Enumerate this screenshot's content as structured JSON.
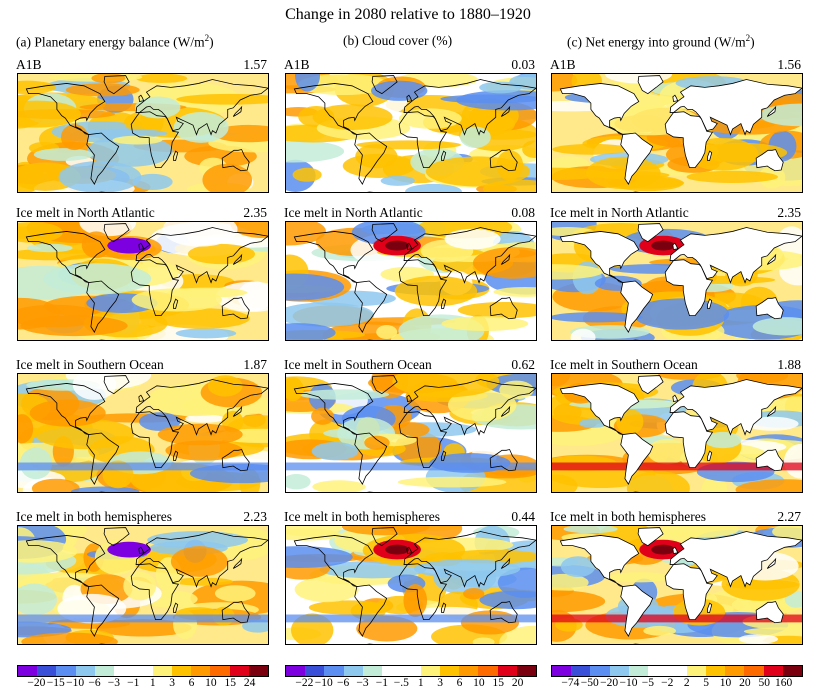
{
  "title": "Change in 2080 relative to 1880–1920",
  "columns": [
    {
      "heading": "(a) Planetary energy balance (W/m",
      "heading_sup": "2",
      "heading_end": ")",
      "panels": [
        {
          "label": "A1B",
          "value": "1.57"
        },
        {
          "label": "Ice melt in North Atlantic",
          "value": "2.35"
        },
        {
          "label": "Ice melt in Southern Ocean",
          "value": "1.87"
        },
        {
          "label": "Ice melt in both hemispheres",
          "value": "2.23"
        }
      ],
      "colorbar": {
        "colors": [
          "#7d00e0",
          "#3a4fd8",
          "#5b8ef0",
          "#8ec8ee",
          "#c3ecd8",
          "#ffffff",
          "#ffffff",
          "#fff27a",
          "#ffc200",
          "#ff9a00",
          "#ff6a00",
          "#e0001a",
          "#7a0010"
        ],
        "ticks": [
          "−20",
          "−15",
          "−10",
          "−6",
          "−3",
          "−1",
          "1",
          "3",
          "6",
          "10",
          "15",
          "24"
        ]
      }
    },
    {
      "heading": "(b) Cloud cover (%)",
      "heading_sup": "",
      "heading_end": "",
      "panels": [
        {
          "label": "A1B",
          "value": "0.03"
        },
        {
          "label": "Ice melt in North Atlantic",
          "value": "0.08"
        },
        {
          "label": "Ice melt in Southern Ocean",
          "value": "0.62"
        },
        {
          "label": "Ice melt in both hemispheres",
          "value": "0.44"
        }
      ],
      "colorbar": {
        "colors": [
          "#7d00e0",
          "#3a4fd8",
          "#5b8ef0",
          "#8ec8ee",
          "#c3ecd8",
          "#ffffff",
          "#ffffff",
          "#fff27a",
          "#ffc200",
          "#ff9a00",
          "#ff6a00",
          "#e0001a",
          "#7a0010"
        ],
        "ticks": [
          "−22",
          "−10",
          "−6",
          "−3",
          "−1",
          "−.5",
          "1",
          "3",
          "6",
          "10",
          "15",
          "20"
        ]
      }
    },
    {
      "heading": "(c) Net energy into ground (W/m",
      "heading_sup": "2",
      "heading_end": ")",
      "panels": [
        {
          "label": "A1B",
          "value": "1.56"
        },
        {
          "label": "Ice melt in North Atlantic",
          "value": "2.35"
        },
        {
          "label": "Ice melt in Southern Ocean",
          "value": "1.88"
        },
        {
          "label": "Ice melt in both hemispheres",
          "value": "2.27"
        }
      ],
      "colorbar": {
        "colors": [
          "#7d00e0",
          "#3a4fd8",
          "#5b8ef0",
          "#8ec8ee",
          "#c3ecd8",
          "#ffffff",
          "#ffffff",
          "#fff27a",
          "#ffc200",
          "#ff9a00",
          "#ff6a00",
          "#e0001a",
          "#7a0010"
        ],
        "ticks": [
          "−74",
          "−50",
          "−20",
          "−10",
          "−5",
          "−2",
          "2",
          "5",
          "10",
          "20",
          "50",
          "160"
        ]
      }
    }
  ],
  "chart_data": {
    "type": "heatmap",
    "title": "Change in 2080 relative to 1880–1920",
    "grid": false,
    "panels": [
      {
        "column": "(a) Planetary energy balance (W/m2)",
        "row": "A1B",
        "global_mean": 1.57
      },
      {
        "column": "(a) Planetary energy balance (W/m2)",
        "row": "Ice melt in North Atlantic",
        "global_mean": 2.35
      },
      {
        "column": "(a) Planetary energy balance (W/m2)",
        "row": "Ice melt in Southern Ocean",
        "global_mean": 1.87
      },
      {
        "column": "(a) Planetary energy balance (W/m2)",
        "row": "Ice melt in both hemispheres",
        "global_mean": 2.23
      },
      {
        "column": "(b) Cloud cover (%)",
        "row": "A1B",
        "global_mean": 0.03
      },
      {
        "column": "(b) Cloud cover (%)",
        "row": "Ice melt in North Atlantic",
        "global_mean": 0.08
      },
      {
        "column": "(b) Cloud cover (%)",
        "row": "Ice melt in Southern Ocean",
        "global_mean": 0.62
      },
      {
        "column": "(b) Cloud cover (%)",
        "row": "Ice melt in both hemispheres",
        "global_mean": 0.44
      },
      {
        "column": "(c) Net energy into ground (W/m2)",
        "row": "A1B",
        "global_mean": 1.56
      },
      {
        "column": "(c) Net energy into ground (W/m2)",
        "row": "Ice melt in North Atlantic",
        "global_mean": 2.35
      },
      {
        "column": "(c) Net energy into ground (W/m2)",
        "row": "Ice melt in Southern Ocean",
        "global_mean": 1.88
      },
      {
        "column": "(c) Net energy into ground (W/m2)",
        "row": "Ice melt in both hemispheres",
        "global_mean": 2.27
      }
    ],
    "colorbar_levels": {
      "planetary_energy_balance": [
        -20,
        -15,
        -10,
        -6,
        -3,
        -1,
        1,
        3,
        6,
        10,
        15,
        24
      ],
      "cloud_cover": [
        -22,
        -10,
        -6,
        -3,
        -1,
        -0.5,
        1,
        3,
        6,
        10,
        15,
        20
      ],
      "net_energy_into_ground": [
        -74,
        -50,
        -20,
        -10,
        -5,
        -2,
        2,
        5,
        10,
        20,
        50,
        160
      ]
    }
  }
}
